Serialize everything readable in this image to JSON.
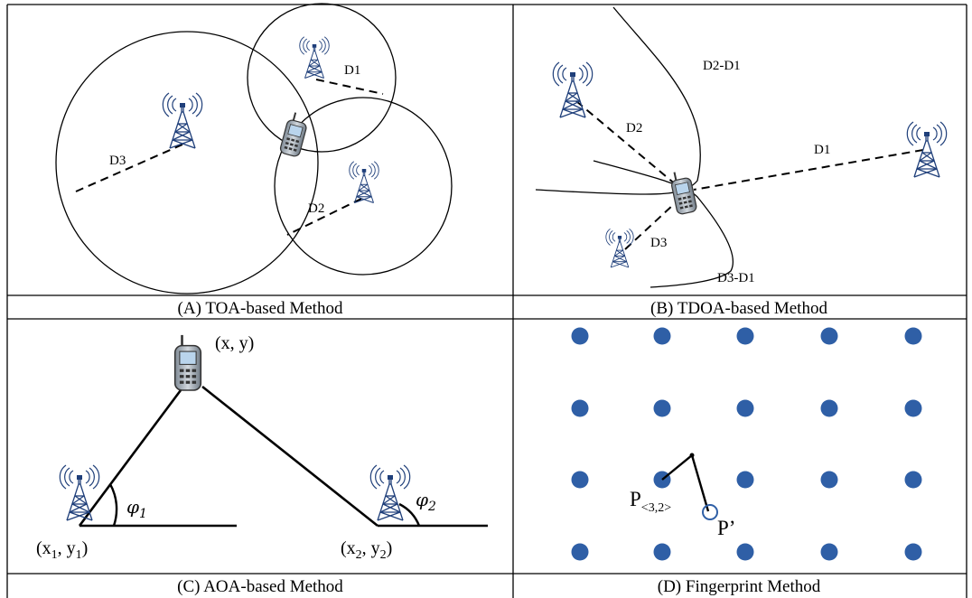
{
  "panels": {
    "toa": {
      "caption": "(A) TOA-based Method",
      "labels": {
        "d1": "D1",
        "d2": "D2",
        "d3": "D3"
      }
    },
    "tdoa": {
      "caption": "(B) TDOA-based Method",
      "labels": {
        "d1": "D1",
        "d2": "D2",
        "d3": "D3",
        "d2d1": "D2-D1",
        "d3d1": "D3-D1"
      }
    },
    "aoa": {
      "caption": "(C) AOA-based Method",
      "labels": {
        "mobile": "(x, y)",
        "bs1_open": "(x",
        "bs1_sub_x": "1",
        "bs1_mid": ", y",
        "bs1_sub_y": "1",
        "bs1_close": ")",
        "bs2_open": "(x",
        "bs2_sub_x": "2",
        "bs2_mid": ", y",
        "bs2_sub_y": "2",
        "bs2_close": ")",
        "phi": "φ",
        "phi1_sub": "1",
        "phi2_sub": "2"
      }
    },
    "fingerprint": {
      "caption": "(D) Fingerprint Method",
      "labels": {
        "p": "P",
        "p_sub": "<3,2>",
        "p_prime": "P’"
      },
      "dot_color": "#2f5fa6"
    }
  },
  "icons": {
    "tower": "radio-tower-icon",
    "phone": "mobile-phone-icon"
  }
}
